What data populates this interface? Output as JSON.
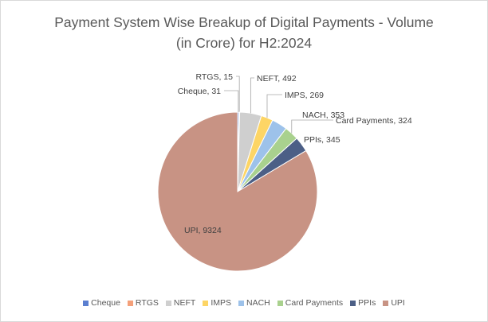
{
  "chart_data": {
    "type": "pie",
    "title": "Payment System Wise Breakup of Digital Payments - Volume (in Crore) for H2:2024",
    "title_lines": [
      "Payment System Wise Breakup of Digital Payments - Volume",
      "(in Crore) for H2:2024"
    ],
    "legend_position": "bottom",
    "slices": [
      {
        "label": "Cheque",
        "value": 31,
        "color": "#5b7fd0",
        "data_label": "Cheque, 31"
      },
      {
        "label": "RTGS",
        "value": 15,
        "color": "#f4a07a",
        "data_label": "RTGS, 15"
      },
      {
        "label": "NEFT",
        "value": 492,
        "color": "#cfcfcf",
        "data_label": "NEFT, 492"
      },
      {
        "label": "IMPS",
        "value": 269,
        "color": "#fdd565",
        "data_label": "IMPS, 269"
      },
      {
        "label": "NACH",
        "value": 353,
        "color": "#9dc2ea",
        "data_label": "NACH, 353"
      },
      {
        "label": "Card Payments",
        "value": 324,
        "color": "#a9d18e",
        "data_label": "Card Payments, 324"
      },
      {
        "label": "PPIs",
        "value": 345,
        "color": "#4c5f86",
        "data_label": "PPIs, 345"
      },
      {
        "label": "UPI",
        "value": 9324,
        "color": "#c89384",
        "data_label": "UPI, 9324"
      }
    ]
  }
}
